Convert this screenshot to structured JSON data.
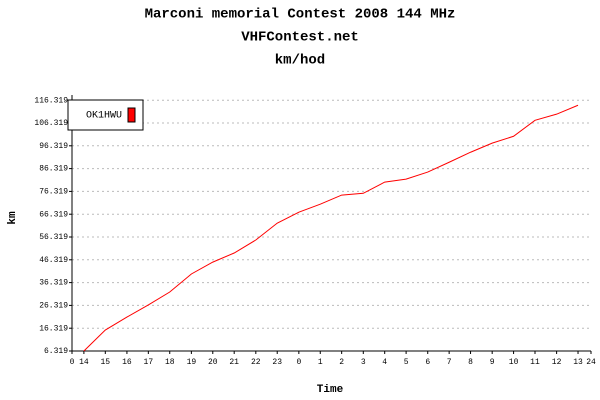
{
  "chart_data": {
    "type": "line",
    "title": "Marconi memorial Contest 2008 144 MHz",
    "subtitle": "VHFContest.net",
    "unit_title": "km/hod",
    "x_label": "Time",
    "y_label": "km",
    "xlim": [
      0,
      24
    ],
    "xticks": [
      {
        "value": 0,
        "label": "0"
      },
      {
        "value": 0.55,
        "label": "14"
      },
      {
        "value": 1.54,
        "label": "15"
      },
      {
        "value": 2.54,
        "label": "16"
      },
      {
        "value": 3.53,
        "label": "17"
      },
      {
        "value": 4.52,
        "label": "18"
      },
      {
        "value": 5.52,
        "label": "19"
      },
      {
        "value": 6.51,
        "label": "20"
      },
      {
        "value": 7.5,
        "label": "21"
      },
      {
        "value": 8.5,
        "label": "22"
      },
      {
        "value": 9.49,
        "label": "23"
      },
      {
        "value": 10.49,
        "label": "0"
      },
      {
        "value": 11.48,
        "label": "1"
      },
      {
        "value": 12.47,
        "label": "2"
      },
      {
        "value": 13.47,
        "label": "3"
      },
      {
        "value": 14.46,
        "label": "4"
      },
      {
        "value": 15.45,
        "label": "5"
      },
      {
        "value": 16.45,
        "label": "6"
      },
      {
        "value": 17.44,
        "label": "7"
      },
      {
        "value": 18.43,
        "label": "8"
      },
      {
        "value": 19.43,
        "label": "9"
      },
      {
        "value": 20.42,
        "label": "10"
      },
      {
        "value": 21.41,
        "label": "11"
      },
      {
        "value": 22.41,
        "label": "12"
      },
      {
        "value": 23.4,
        "label": "13"
      },
      {
        "value": 24,
        "label": "24"
      }
    ],
    "ylim": [
      6.319,
      118.6
    ],
    "yticks": [
      6.319,
      16.319,
      26.319,
      36.319,
      46.319,
      56.319,
      66.319,
      76.319,
      86.319,
      96.319,
      106.319,
      116.319
    ],
    "grid": true,
    "legend": "top-left",
    "x": [
      0.55,
      1.54,
      2.54,
      3.53,
      4.52,
      5.52,
      6.51,
      7.5,
      8.5,
      9.49,
      10.49,
      11.48,
      12.47,
      13.47,
      14.46,
      15.45,
      16.45,
      17.44,
      18.43,
      19.43,
      20.42,
      21.41,
      22.41,
      23.4
    ],
    "series": [
      {
        "name": "OK1HWU",
        "color": "#ff0000",
        "values": [
          6.3,
          15.5,
          21.2,
          26.5,
          32.2,
          40.1,
          45.3,
          49.3,
          55.0,
          62.4,
          67.2,
          70.7,
          74.7,
          75.5,
          80.4,
          81.7,
          84.8,
          89.1,
          93.5,
          97.5,
          100.5,
          107.5,
          110.2,
          114.1
        ]
      }
    ]
  }
}
